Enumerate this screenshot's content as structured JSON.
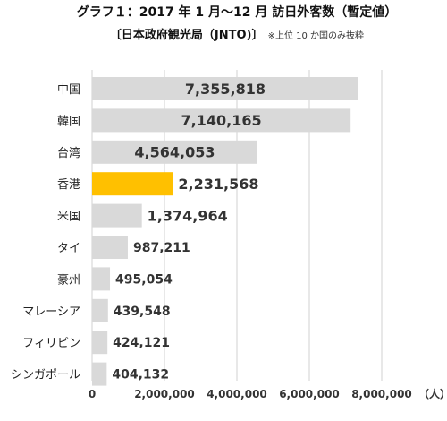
{
  "chart_data": {
    "type": "bar",
    "orientation": "horizontal",
    "title": "グラフ１：2017 年 1 月～12 月  訪日外客数（暫定値）",
    "subtitle": "〔日本政府観光局（JNTO)〕",
    "note": "※上位 10 か国のみ抜粋",
    "categories": [
      "中国",
      "韓国",
      "台湾",
      "香港",
      "米国",
      "タイ",
      "豪州",
      "マレーシア",
      "フィリピン",
      "シンガポール"
    ],
    "values": [
      7355818,
      7140165,
      4564053,
      2231568,
      1374964,
      987211,
      495054,
      439548,
      424121,
      404132
    ],
    "value_labels": [
      "7,355,818",
      "7,140,165",
      "4,564,053",
      "2,231,568",
      "1,374,964",
      "987,211",
      "495,054",
      "439,548",
      "424,121",
      "404,132"
    ],
    "highlight_category": "香港",
    "x_ticks": [
      0,
      2000000,
      4000000,
      6000000,
      8000000
    ],
    "x_tick_labels": [
      "0",
      "2,000,000",
      "4,000,000",
      "6,000,000",
      "8,000,000"
    ],
    "x_unit": "（人）",
    "xlim": [
      0,
      8000000
    ],
    "grid": true,
    "legend": "none",
    "colors": {
      "bar": "#d9d9d9",
      "highlight": "#ffc000",
      "grid": "#d0d0d0"
    }
  }
}
